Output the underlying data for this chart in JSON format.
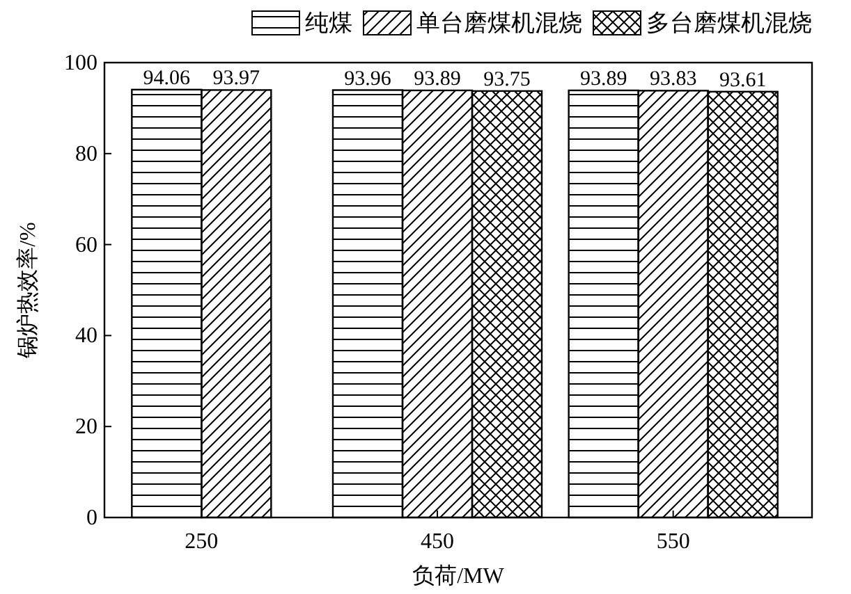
{
  "chart_data": {
    "type": "bar",
    "xlabel": "负荷/MW",
    "ylabel": "锅炉热效率/%",
    "categories": [
      "250",
      "450",
      "550"
    ],
    "series": [
      {
        "name": "纯煤",
        "color": "#000000",
        "values": [
          94.06,
          93.96,
          93.89
        ]
      },
      {
        "name": "单台磨煤机混烧",
        "color": "#000000",
        "values": [
          93.97,
          93.89,
          93.83
        ]
      },
      {
        "name": "多台磨煤机混烧",
        "color": "#000000",
        "values": [
          null,
          93.75,
          93.61
        ]
      }
    ],
    "ylim": [
      0,
      100
    ],
    "yticks": [
      0,
      20,
      40,
      60,
      80,
      100
    ],
    "data_labels": true,
    "legend": "top",
    "grid": false
  }
}
